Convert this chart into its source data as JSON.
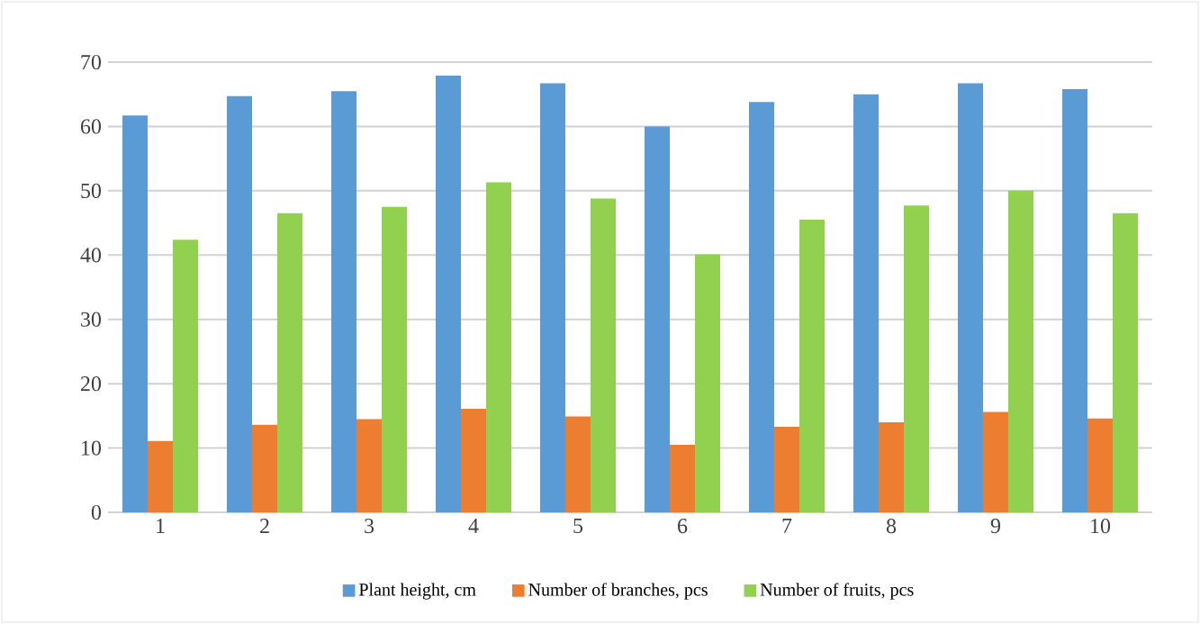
{
  "chart_data": {
    "type": "bar",
    "categories": [
      "1",
      "2",
      "3",
      "4",
      "5",
      "6",
      "7",
      "8",
      "9",
      "10"
    ],
    "series": [
      {
        "name": "Plant height, cm",
        "color": "#5b9bd5",
        "values": [
          61.7,
          64.7,
          65.5,
          67.9,
          66.7,
          60.0,
          63.8,
          65.0,
          66.7,
          65.8
        ]
      },
      {
        "name": "Number of branches, pcs",
        "color": "#ed7d31",
        "values": [
          11.1,
          13.6,
          14.5,
          16.1,
          14.9,
          10.5,
          13.3,
          14.0,
          15.6,
          14.6
        ]
      },
      {
        "name": "Number of fruits, pcs",
        "color": "#92d050",
        "values": [
          42.4,
          46.5,
          47.5,
          51.3,
          48.8,
          40.1,
          45.5,
          47.7,
          50.0,
          46.5
        ]
      }
    ],
    "ylim": [
      0,
      70
    ],
    "yticks": [
      0,
      10,
      20,
      30,
      40,
      50,
      60,
      70
    ],
    "grid": "y",
    "legend": "bottom"
  }
}
